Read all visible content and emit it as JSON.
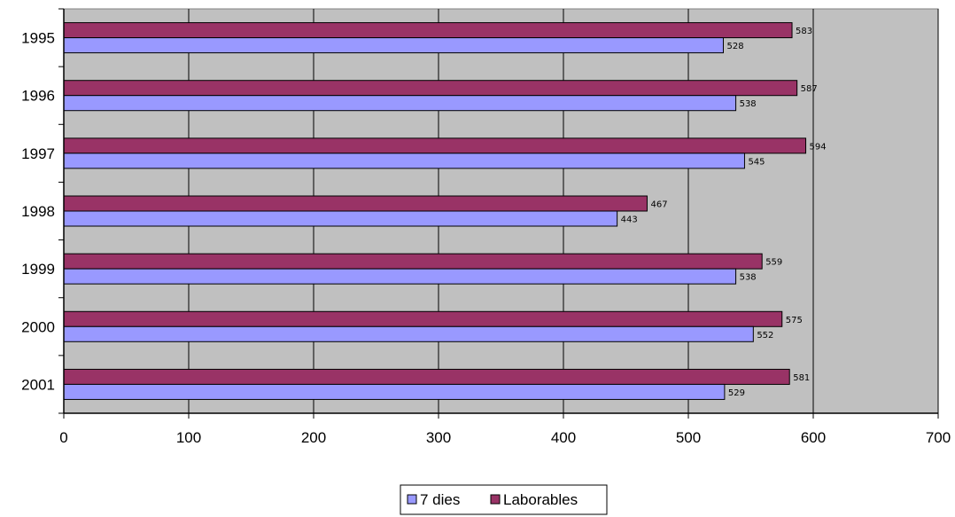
{
  "chart_data": {
    "type": "bar",
    "orientation": "horizontal",
    "categories": [
      "1995",
      "1996",
      "1997",
      "1998",
      "1999",
      "2000",
      "2001"
    ],
    "series": [
      {
        "name": "7 dies",
        "color": "#9999FF",
        "values": [
          528,
          538,
          545,
          443,
          538,
          552,
          529
        ]
      },
      {
        "name": "Laborables",
        "color": "#993366",
        "values": [
          583,
          587,
          594,
          467,
          559,
          575,
          581
        ]
      }
    ],
    "xlim": [
      0,
      700
    ],
    "xticks": [
      0,
      100,
      200,
      300,
      400,
      500,
      600,
      700
    ],
    "grid": true,
    "legend": {
      "placement": "bottom",
      "entries": [
        "7 dies",
        "Laborables"
      ]
    },
    "plot_background": "#C0C0C0"
  }
}
